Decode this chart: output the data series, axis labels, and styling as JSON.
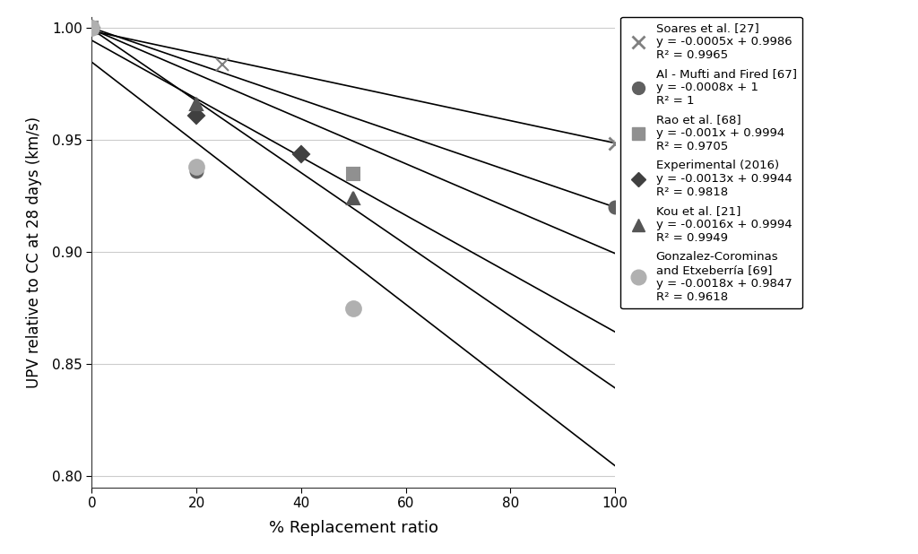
{
  "series": [
    {
      "label": "Soares et al. [27]",
      "eq": "y = -0.0005x + 0.9986",
      "r2": "R² = 0.9965",
      "slope": -0.0005,
      "intercept": 0.9986,
      "marker": "x",
      "color": "#808080",
      "markersize": 10,
      "data_x": [
        25
      ],
      "data_y": [
        0.9836
      ]
    },
    {
      "label": "Al - Mufti and Fired [67]",
      "eq": "y = -0.0008x + 1",
      "r2": "R² = 1",
      "slope": -0.0008,
      "intercept": 1.0,
      "marker": "o",
      "color": "#606060",
      "markersize": 10,
      "data_x": [
        20
      ],
      "data_y": [
        0.936
      ]
    },
    {
      "label": "Rao et al. [68]",
      "eq": "y = -0.001x + 0.9994",
      "r2": "R² = 0.9705",
      "slope": -0.001,
      "intercept": 0.9994,
      "marker": "s",
      "color": "#909090",
      "markersize": 10,
      "data_x": [
        50
      ],
      "data_y": [
        0.935
      ]
    },
    {
      "label": "Experimental (2016)",
      "eq": "y = -0.0013x + 0.9944",
      "r2": "R² = 0.9818",
      "slope": -0.0013,
      "intercept": 0.9944,
      "marker": "D",
      "color": "#404040",
      "markersize": 9,
      "data_x": [
        20,
        40
      ],
      "data_y": [
        0.9608,
        0.9438
      ]
    },
    {
      "label": "Kou et al. [21]",
      "eq": "y = -0.0016x + 0.9994",
      "r2": "R² = 0.9949",
      "slope": -0.0016,
      "intercept": 0.9994,
      "marker": "^",
      "color": "#555555",
      "markersize": 10,
      "data_x": [
        20,
        50
      ],
      "data_y": [
        0.966,
        0.924
      ]
    },
    {
      "label": "Gonzalez-Corominas\nand Etxeberría [69]",
      "eq": "y = -0.0018x + 0.9847",
      "r2": "R² = 0.9618",
      "slope": -0.0018,
      "intercept": 0.9847,
      "marker": "o",
      "color": "#b0b0b0",
      "markersize": 12,
      "data_x": [
        20,
        50
      ],
      "data_y": [
        0.938,
        0.875
      ]
    }
  ],
  "xlim": [
    0,
    100
  ],
  "ylim": [
    0.795,
    1.005
  ],
  "xlabel": "% Replacement ratio",
  "ylabel": "UPV relative to CC at 28 days (km/s)",
  "xticks": [
    0,
    20,
    40,
    60,
    80,
    100
  ],
  "yticks": [
    0.8,
    0.85,
    0.9,
    0.95,
    1.0
  ],
  "line_x_start": 0,
  "line_x_end": 100,
  "bg_color": "#ffffff",
  "grid_color": "#cccccc"
}
